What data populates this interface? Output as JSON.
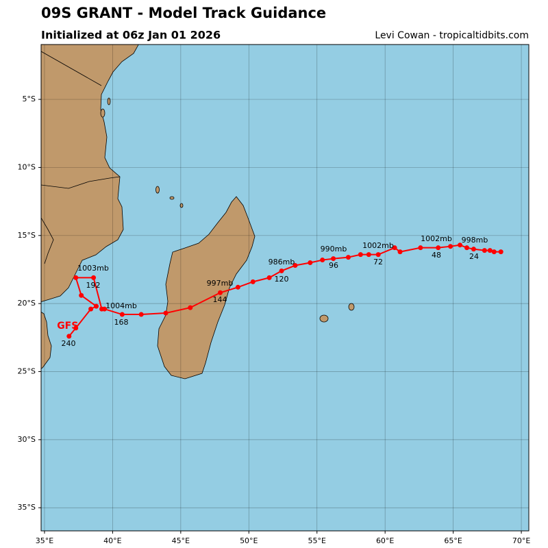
{
  "chart_data": {
    "type": "track",
    "title": "09S GRANT - Model Track Guidance",
    "subtitle": "Initialized at 06z Jan 01 2026",
    "credit": "Levi Cowan - tropicaltidbits.com",
    "xlim": [
      34.75,
      70.55
    ],
    "ylim": [
      -36.7,
      -0.97
    ],
    "xticks": [
      {
        "value": 35,
        "label": "35°E"
      },
      {
        "value": 40,
        "label": "40°E"
      },
      {
        "value": 45,
        "label": "45°E"
      },
      {
        "value": 50,
        "label": "50°E"
      },
      {
        "value": 55,
        "label": "55°E"
      },
      {
        "value": 60,
        "label": "60°E"
      },
      {
        "value": 65,
        "label": "65°E"
      },
      {
        "value": 70,
        "label": "70°E"
      }
    ],
    "yticks": [
      {
        "value": -5,
        "label": "5°S"
      },
      {
        "value": -10,
        "label": "10°S"
      },
      {
        "value": -15,
        "label": "15°S"
      },
      {
        "value": -20,
        "label": "20°S"
      },
      {
        "value": -25,
        "label": "25°S"
      },
      {
        "value": -30,
        "label": "30°S"
      },
      {
        "value": -35,
        "label": "35°S"
      }
    ],
    "grid": true,
    "series": [
      {
        "name": "GFS",
        "color": "#ff0000",
        "x": [
          68.5,
          68.0,
          67.7,
          67.3,
          66.5,
          66.0,
          65.5,
          64.8,
          63.9,
          62.6,
          61.1,
          60.7,
          59.5,
          58.8,
          58.2,
          57.3,
          56.2,
          55.4,
          54.5,
          53.4,
          52.4,
          51.5,
          50.3,
          49.2,
          47.9,
          45.7,
          43.9,
          42.1,
          40.7,
          39.4,
          39.2,
          38.6,
          37.3,
          37.7,
          38.8,
          38.4,
          37.3,
          36.8
        ],
        "values": [
          -16.2,
          -16.2,
          -16.1,
          -16.1,
          -16.0,
          -15.9,
          -15.7,
          -15.8,
          -15.9,
          -15.9,
          -16.2,
          -15.9,
          -16.4,
          -16.4,
          -16.4,
          -16.6,
          -16.7,
          -16.8,
          -17.0,
          -17.2,
          -17.6,
          -18.1,
          -18.4,
          -18.8,
          -19.2,
          -20.3,
          -20.7,
          -20.8,
          -20.8,
          -20.4,
          -20.4,
          -18.1,
          -18.1,
          -19.4,
          -20.2,
          -20.4,
          -21.8,
          -22.4
        ]
      }
    ],
    "annotations": [
      "998mb",
      "24",
      "1002mb",
      "48",
      "1002mb",
      "72",
      "990mb",
      "96",
      "986mb",
      "120",
      "997mb",
      "144",
      "1004mb",
      "168",
      "1003mb",
      "192",
      "240"
    ]
  }
}
